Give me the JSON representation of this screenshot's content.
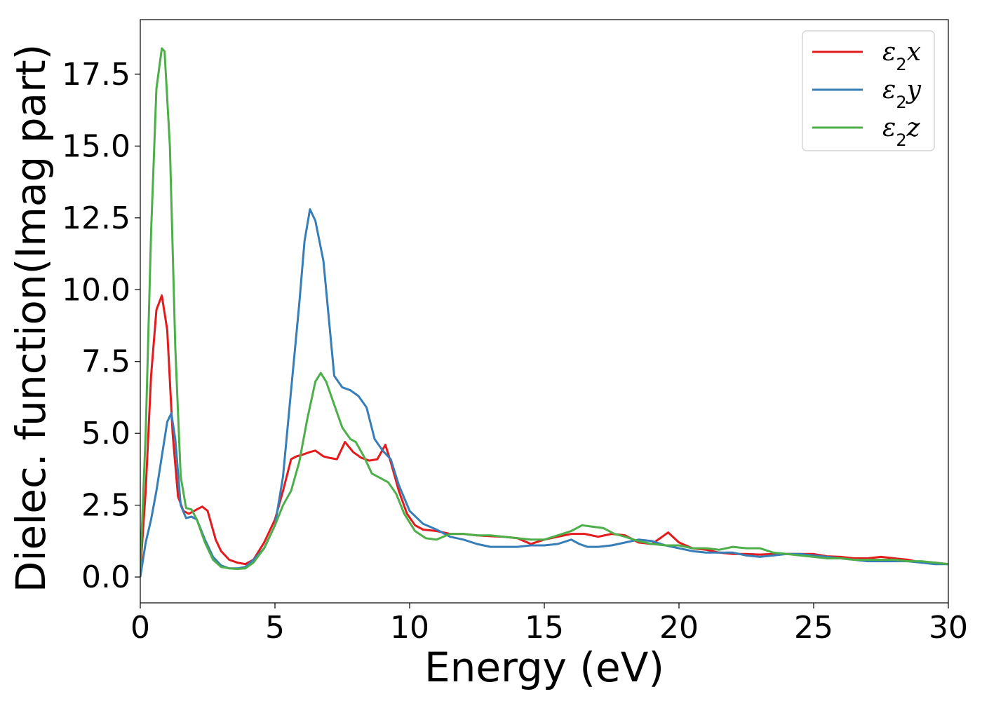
{
  "chart_data": {
    "type": "line",
    "title": "",
    "xlabel": "Energy (eV)",
    "ylabel": "Dielec. function(Imag part)",
    "xlim": [
      0,
      30
    ],
    "ylim": [
      -0.9,
      19.4
    ],
    "xticks": [
      0,
      5,
      10,
      15,
      20,
      25,
      30
    ],
    "xtick_labels": [
      "0",
      "5",
      "10",
      "15",
      "20",
      "25",
      "30"
    ],
    "yticks": [
      0.0,
      2.5,
      5.0,
      7.5,
      10.0,
      12.5,
      15.0,
      17.5
    ],
    "ytick_labels": [
      "0.0",
      "2.5",
      "5.0",
      "7.5",
      "10.0",
      "12.5",
      "15.0",
      "17.5"
    ],
    "grid": false,
    "legend_position": "top-right",
    "series": [
      {
        "name": "ε2x",
        "legend_base": "ε",
        "legend_sub": "2",
        "legend_tail": "x",
        "color": "#e41a1c",
        "x": [
          0,
          0.2,
          0.4,
          0.6,
          0.8,
          1.0,
          1.2,
          1.4,
          1.6,
          1.8,
          2.0,
          2.3,
          2.5,
          2.8,
          3.0,
          3.3,
          3.6,
          3.9,
          4.2,
          4.6,
          5.0,
          5.3,
          5.6,
          5.8,
          6.0,
          6.3,
          6.5,
          6.8,
          7.0,
          7.3,
          7.6,
          7.9,
          8.2,
          8.5,
          8.8,
          9.1,
          9.3,
          9.6,
          9.9,
          10.2,
          10.5,
          11.0,
          11.5,
          12.0,
          12.5,
          13.0,
          13.5,
          14.0,
          14.5,
          15.0,
          15.5,
          16.0,
          16.5,
          17.0,
          17.5,
          18.0,
          18.5,
          19.0,
          19.6,
          20.0,
          20.5,
          21.0,
          21.5,
          22.0,
          22.5,
          23.0,
          23.5,
          24.0,
          24.5,
          25.0,
          25.5,
          26.0,
          26.5,
          27.0,
          27.5,
          28.0,
          28.5,
          29.0,
          29.5,
          30.0
        ],
        "y": [
          0.2,
          3.0,
          7.0,
          9.3,
          9.8,
          8.6,
          5.0,
          2.8,
          2.3,
          2.2,
          2.3,
          2.45,
          2.3,
          1.3,
          0.9,
          0.6,
          0.5,
          0.45,
          0.6,
          1.2,
          2.0,
          3.0,
          4.1,
          4.2,
          4.25,
          4.35,
          4.4,
          4.2,
          4.15,
          4.1,
          4.7,
          4.35,
          4.15,
          4.05,
          4.1,
          4.6,
          4.0,
          3.0,
          2.2,
          1.8,
          1.65,
          1.6,
          1.5,
          1.5,
          1.45,
          1.42,
          1.4,
          1.35,
          1.15,
          1.3,
          1.4,
          1.5,
          1.5,
          1.4,
          1.5,
          1.45,
          1.2,
          1.15,
          1.55,
          1.2,
          1.0,
          0.95,
          0.85,
          0.8,
          0.8,
          0.78,
          0.8,
          0.8,
          0.8,
          0.8,
          0.72,
          0.7,
          0.65,
          0.65,
          0.7,
          0.65,
          0.6,
          0.5,
          0.5,
          0.45
        ]
      },
      {
        "name": "ε2y",
        "legend_base": "ε",
        "legend_sub": "2",
        "legend_tail": "y",
        "color": "#377eb8",
        "x": [
          0,
          0.2,
          0.4,
          0.6,
          0.8,
          1.0,
          1.15,
          1.3,
          1.5,
          1.7,
          1.9,
          2.1,
          2.4,
          2.7,
          3.0,
          3.3,
          3.6,
          3.9,
          4.2,
          4.6,
          5.0,
          5.3,
          5.6,
          5.9,
          6.1,
          6.3,
          6.5,
          6.8,
          7.0,
          7.2,
          7.5,
          7.8,
          8.1,
          8.4,
          8.7,
          9.0,
          9.3,
          9.6,
          10.0,
          10.5,
          11.0,
          11.5,
          12.0,
          12.5,
          13.0,
          13.5,
          14.0,
          14.5,
          15.0,
          15.5,
          16.0,
          16.3,
          16.6,
          17.0,
          17.5,
          18.0,
          18.5,
          19.0,
          19.5,
          20.0,
          20.5,
          21.0,
          21.5,
          22.0,
          22.5,
          23.0,
          23.5,
          24.0,
          24.5,
          25.0,
          25.5,
          26.0,
          26.5,
          27.0,
          27.5,
          28.0,
          28.5,
          29.0,
          29.5,
          30.0
        ],
        "y": [
          0.0,
          1.2,
          2.0,
          3.0,
          4.2,
          5.4,
          5.7,
          4.8,
          2.5,
          2.05,
          2.1,
          2.0,
          1.3,
          0.7,
          0.4,
          0.3,
          0.3,
          0.35,
          0.6,
          1.0,
          1.8,
          3.5,
          6.5,
          9.5,
          11.7,
          12.8,
          12.4,
          11.0,
          9.0,
          7.0,
          6.6,
          6.5,
          6.3,
          5.9,
          4.8,
          4.4,
          4.1,
          3.2,
          2.3,
          1.85,
          1.65,
          1.4,
          1.3,
          1.15,
          1.05,
          1.05,
          1.05,
          1.1,
          1.1,
          1.15,
          1.3,
          1.15,
          1.05,
          1.05,
          1.1,
          1.2,
          1.3,
          1.25,
          1.1,
          1.0,
          0.9,
          0.85,
          0.85,
          0.85,
          0.75,
          0.7,
          0.75,
          0.8,
          0.8,
          0.75,
          0.7,
          0.65,
          0.6,
          0.55,
          0.55,
          0.55,
          0.55,
          0.5,
          0.45,
          0.45
        ]
      },
      {
        "name": "ε2z",
        "legend_base": "ε",
        "legend_sub": "2",
        "legend_tail": "z",
        "color": "#4daf4a",
        "x": [
          0,
          0.2,
          0.4,
          0.6,
          0.8,
          0.9,
          1.1,
          1.3,
          1.5,
          1.7,
          1.9,
          2.1,
          2.4,
          2.7,
          3.0,
          3.3,
          3.6,
          3.9,
          4.2,
          4.6,
          5.0,
          5.3,
          5.6,
          5.9,
          6.2,
          6.5,
          6.7,
          6.9,
          7.2,
          7.5,
          7.8,
          8.0,
          8.3,
          8.6,
          8.9,
          9.2,
          9.5,
          9.8,
          10.2,
          10.6,
          11.0,
          11.5,
          12.0,
          12.5,
          13.0,
          13.5,
          14.0,
          14.5,
          15.0,
          15.5,
          16.0,
          16.4,
          16.8,
          17.2,
          17.6,
          18.0,
          18.5,
          19.0,
          19.5,
          20.0,
          20.5,
          21.0,
          21.5,
          22.0,
          22.5,
          23.0,
          23.5,
          24.0,
          24.5,
          25.0,
          25.5,
          26.0,
          26.5,
          27.0,
          27.5,
          28.0,
          28.5,
          29.0,
          29.5,
          30.0
        ],
        "y": [
          0.3,
          5.0,
          12.0,
          17.0,
          18.4,
          18.3,
          15.0,
          8.0,
          3.5,
          2.4,
          2.35,
          2.0,
          1.2,
          0.6,
          0.35,
          0.3,
          0.28,
          0.3,
          0.5,
          1.0,
          1.8,
          2.5,
          3.0,
          4.0,
          5.5,
          6.8,
          7.1,
          6.8,
          6.0,
          5.2,
          4.8,
          4.7,
          4.2,
          3.6,
          3.45,
          3.3,
          2.9,
          2.2,
          1.6,
          1.35,
          1.3,
          1.5,
          1.5,
          1.45,
          1.45,
          1.4,
          1.35,
          1.3,
          1.3,
          1.45,
          1.6,
          1.8,
          1.75,
          1.7,
          1.5,
          1.4,
          1.25,
          1.15,
          1.1,
          1.1,
          1.0,
          1.0,
          0.95,
          1.05,
          1.0,
          1.0,
          0.85,
          0.8,
          0.75,
          0.7,
          0.65,
          0.65,
          0.6,
          0.6,
          0.6,
          0.6,
          0.55,
          0.55,
          0.5,
          0.45
        ]
      }
    ]
  }
}
